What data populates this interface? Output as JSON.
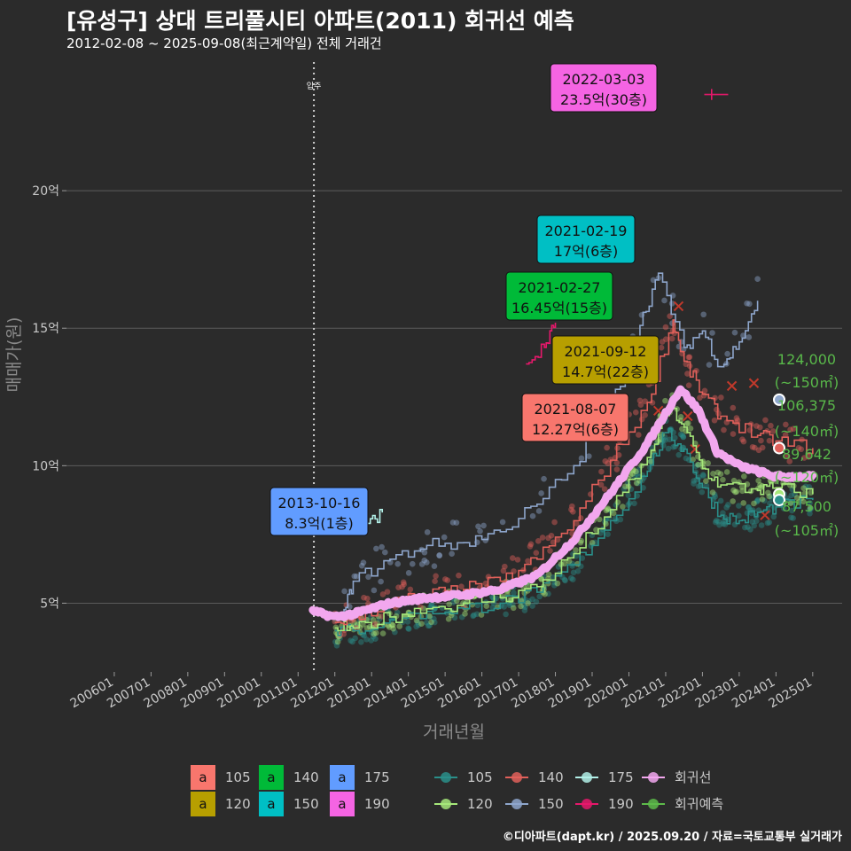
{
  "header": {
    "title": "[유성구] 상대 트리풀시티 아파트(2011) 회귀선 예측",
    "subtitle": "2012-02-08 ~ 2025-09-08(최근계약일) 전체 거래건"
  },
  "caption": "©디아파트(dapt.kr) / 2025.09.20 / 자료=국토교통부 실거래가",
  "colors": {
    "bg": "#2b2b2b",
    "grid": "#5c5c5c",
    "a105": "#f8766d",
    "a120": "#b79f00",
    "a140": "#00ba38",
    "a150": "#00bfc4",
    "a175": "#619cff",
    "a190": "#f564e3",
    "l105": "#2a8f8a",
    "l120": "#a6e87a",
    "l140": "#e0605a",
    "l150": "#8ea6cc",
    "l175": "#b2f0e8",
    "l190": "#e6186b",
    "reg": "#f2a7ee",
    "pred": "#5dbb4a"
  },
  "chart_data": {
    "type": "scatter",
    "xlabel": "거래년월",
    "ylabel": "매매가(원)",
    "ylim": [
      2.5,
      25
    ],
    "x_ticks": [
      "200601",
      "200701",
      "200801",
      "200901",
      "201001",
      "201101",
      "201201",
      "201301",
      "201401",
      "201501",
      "201601",
      "201701",
      "201801",
      "201901",
      "202001",
      "202101",
      "202201",
      "202301",
      "202401",
      "202501"
    ],
    "y_ticks": [
      {
        "v": 5,
        "label": "5억"
      },
      {
        "v": 10,
        "label": "10억"
      },
      {
        "v": 15,
        "label": "15억"
      },
      {
        "v": 20,
        "label": "20억"
      }
    ],
    "move_in": {
      "date": 2011.93,
      "label": "입주"
    },
    "annotations": [
      {
        "date": "2022-03-03",
        "text": "23.5억(30층)",
        "x": 2022.17,
        "y": 23.5,
        "color": "#f564e3"
      },
      {
        "date": "2021-02-19",
        "text": "17억(6층)",
        "x": 2021.13,
        "y": 17.0,
        "color": "#00bfc4"
      },
      {
        "date": "2021-02-27",
        "text": "16.45억(15층)",
        "x": 2021.16,
        "y": 16.45,
        "color": "#00ba38"
      },
      {
        "date": "2021-09-12",
        "text": "14.7억(22층)",
        "x": 2021.7,
        "y": 14.7,
        "color": "#b79f00"
      },
      {
        "date": "2021-08-07",
        "text": "12.27억(6층)",
        "x": 2021.6,
        "y": 12.27,
        "color": "#f8766d"
      },
      {
        "date": "2013-10-16",
        "text": "8.3억(1층)",
        "x": 2013.79,
        "y": 8.3,
        "color": "#619cff"
      }
    ],
    "predictions": [
      {
        "value": "124,000",
        "area": "(~150㎡)",
        "y": 12.4,
        "color": "#8ea6cc"
      },
      {
        "value": "106,375",
        "area": "(~140㎡)",
        "y": 10.64,
        "color": "#e0605a"
      },
      {
        "value": "89,642",
        "area": "(~120㎡)",
        "y": 8.96,
        "color": "#a6e87a"
      },
      {
        "value": "87,500",
        "area": "(~105㎡)",
        "y": 8.75,
        "color": "#2a8f8a"
      }
    ],
    "series": [
      {
        "name": "105",
        "color": "#2a8f8a",
        "points": [
          [
            2012.5,
            4.0
          ],
          [
            2013,
            4.0
          ],
          [
            2014,
            4.4
          ],
          [
            2015,
            4.7
          ],
          [
            2016,
            4.8
          ],
          [
            2017,
            5.0
          ],
          [
            2018,
            5.4
          ],
          [
            2019,
            6.4
          ],
          [
            2020,
            8.0
          ],
          [
            2021,
            9.8
          ],
          [
            2021.5,
            11.2
          ],
          [
            2022,
            10.6
          ],
          [
            2022.5,
            9.2
          ],
          [
            2023,
            8.2
          ],
          [
            2023.5,
            8.0
          ],
          [
            2024,
            8.3
          ],
          [
            2024.5,
            8.5
          ],
          [
            2025.5,
            8.75
          ]
        ]
      },
      {
        "name": "120",
        "color": "#a6e87a",
        "points": [
          [
            2012.5,
            4.1
          ],
          [
            2013,
            4.1
          ],
          [
            2014,
            4.5
          ],
          [
            2015,
            4.8
          ],
          [
            2016,
            5.0
          ],
          [
            2017,
            5.2
          ],
          [
            2018,
            5.6
          ],
          [
            2019,
            6.8
          ],
          [
            2020,
            8.4
          ],
          [
            2021,
            10.3
          ],
          [
            2021.6,
            12.2
          ],
          [
            2022,
            11.4
          ],
          [
            2022.5,
            9.9
          ],
          [
            2023,
            9.3
          ],
          [
            2024,
            9.1
          ],
          [
            2024.5,
            9.2
          ],
          [
            2025.5,
            8.96
          ]
        ]
      },
      {
        "name": "140",
        "color": "#e0605a",
        "points": [
          [
            2012.5,
            4.3
          ],
          [
            2013,
            4.5
          ],
          [
            2014,
            5.0
          ],
          [
            2015,
            5.3
          ],
          [
            2016,
            5.5
          ],
          [
            2017,
            5.8
          ],
          [
            2018,
            6.6
          ],
          [
            2019,
            8.0
          ],
          [
            2020,
            10.2
          ],
          [
            2021,
            12.3
          ],
          [
            2021.7,
            15.3
          ],
          [
            2022,
            13.8
          ],
          [
            2022.5,
            12.6
          ],
          [
            2023,
            11.8
          ],
          [
            2024,
            11.1
          ],
          [
            2024.5,
            10.9
          ],
          [
            2025.5,
            10.64
          ]
        ]
      },
      {
        "name": "150",
        "color": "#8ea6cc",
        "points": [
          [
            2012.7,
            4.4
          ],
          [
            2013,
            5.8
          ],
          [
            2014,
            6.6
          ],
          [
            2015,
            7.1
          ],
          [
            2016,
            7.2
          ],
          [
            2017,
            7.6
          ],
          [
            2018,
            8.6
          ],
          [
            2019,
            10.0
          ],
          [
            2020,
            12.1
          ],
          [
            2020.8,
            15.1
          ],
          [
            2021.3,
            17.0
          ],
          [
            2022,
            14.3
          ],
          [
            2022.5,
            14.9
          ],
          [
            2023,
            13.6
          ],
          [
            2023.5,
            14.5
          ],
          [
            2024,
            16.0
          ]
        ]
      },
      {
        "name": "175",
        "color": "#b2f0e8",
        "points": [
          [
            2013.4,
            7.9
          ],
          [
            2013.79,
            8.3
          ]
        ]
      },
      {
        "name": "190",
        "color": "#e6186b",
        "points": [
          [
            2017.7,
            13.7
          ],
          [
            2018.2,
            14.3
          ],
          [
            2018.5,
            15.2
          ]
        ]
      },
      {
        "name": "회귀선",
        "color": "#f2a7ee",
        "points": [
          [
            2011.9,
            4.7
          ],
          [
            2012.5,
            4.5
          ],
          [
            2013,
            4.6
          ],
          [
            2014,
            5.0
          ],
          [
            2015,
            5.2
          ],
          [
            2016,
            5.3
          ],
          [
            2017,
            5.5
          ],
          [
            2018,
            6.0
          ],
          [
            2019,
            7.3
          ],
          [
            2020,
            9.0
          ],
          [
            2021,
            10.8
          ],
          [
            2021.9,
            12.8
          ],
          [
            2022.4,
            12.0
          ],
          [
            2022.9,
            10.5
          ],
          [
            2023.5,
            10.0
          ],
          [
            2024.5,
            9.6
          ],
          [
            2025.5,
            9.6
          ]
        ]
      }
    ],
    "legend_area": [
      "105",
      "120",
      "140",
      "150",
      "175",
      "190"
    ],
    "legend_line": [
      "105",
      "120",
      "140",
      "150",
      "175",
      "190",
      "회귀선",
      "회귀예측"
    ],
    "legend_glyph": "a"
  }
}
